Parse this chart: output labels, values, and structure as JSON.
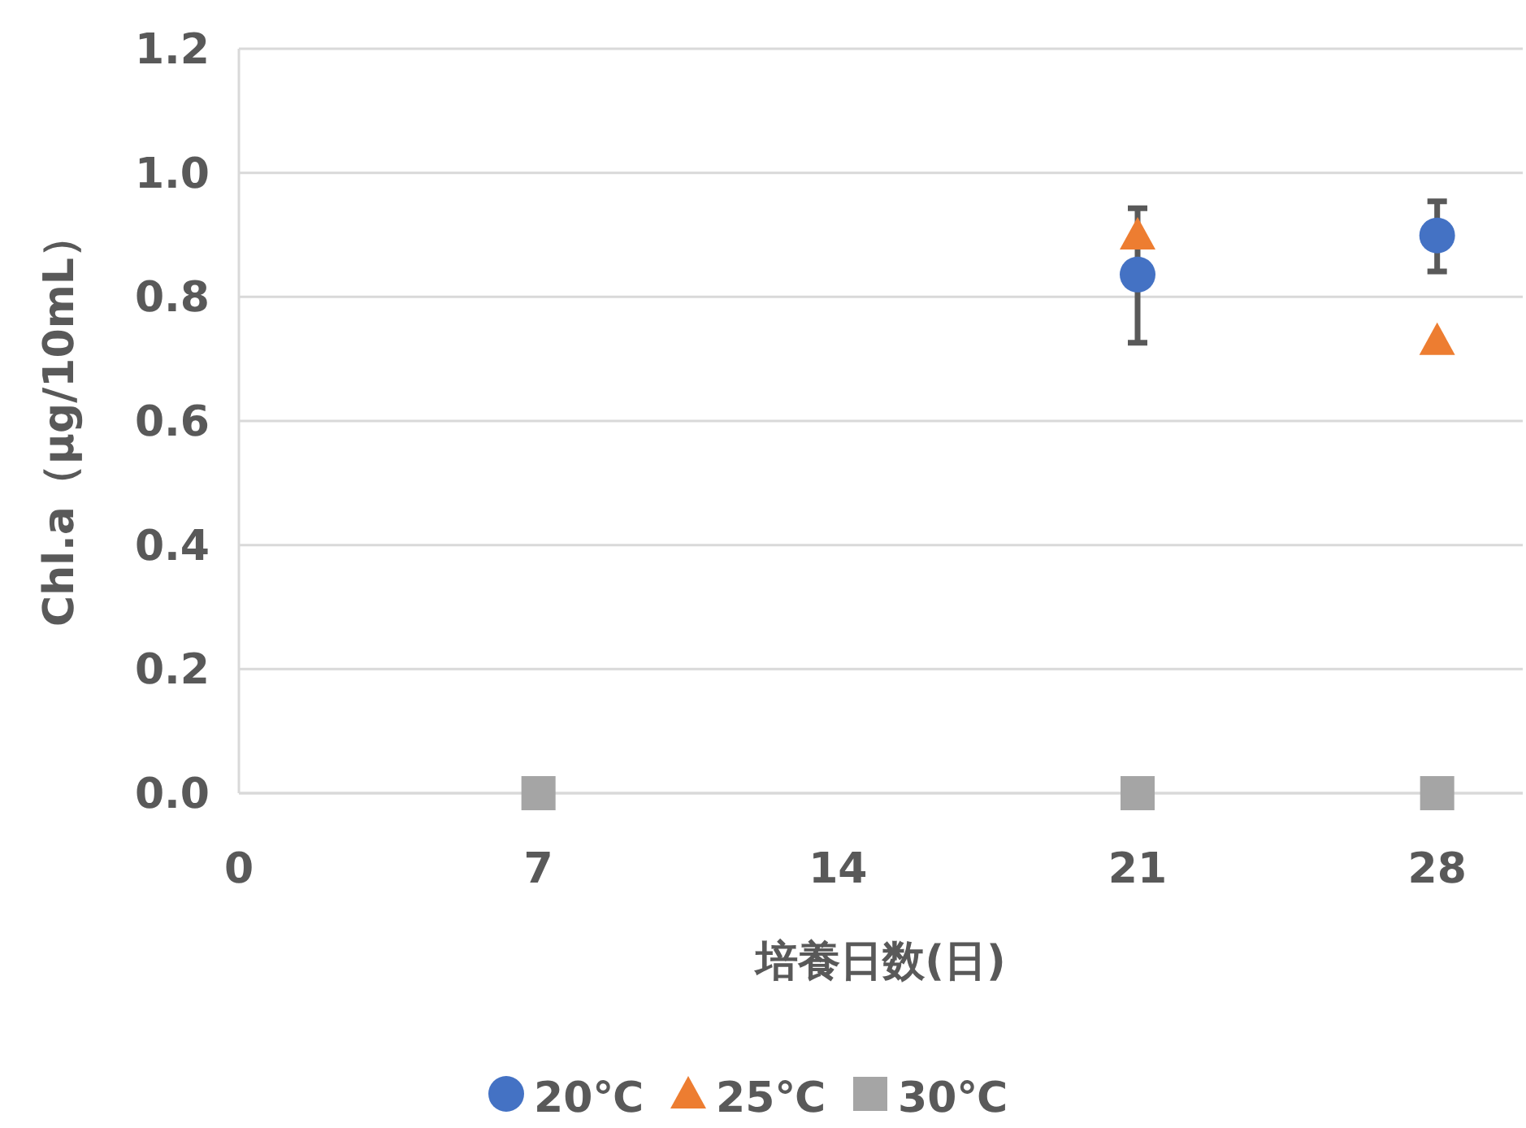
{
  "chart_data": {
    "type": "scatter",
    "xlabel": "培養日数(日)",
    "ylabel": "Chl.a（μg/10mL）",
    "xlim": [
      0,
      30
    ],
    "xticks": [
      0,
      7,
      14,
      21,
      28
    ],
    "ylim": [
      0,
      1.2
    ],
    "yticks": [
      {
        "value": 0,
        "label": "0.0"
      },
      {
        "value": 0.2,
        "label": "0.2"
      },
      {
        "value": 0.4,
        "label": "0.4"
      },
      {
        "value": 0.6,
        "label": "0.6"
      },
      {
        "value": 0.8,
        "label": "0.8"
      },
      {
        "value": 1.0,
        "label": "1.0"
      },
      {
        "value": 1.2,
        "label": "1.2"
      }
    ],
    "grid": "y",
    "legend": "bottom",
    "series": [
      {
        "name": "20℃",
        "color": "#4472c4",
        "marker": "circle",
        "x": [
          21,
          28
        ],
        "values": [
          0.836,
          0.899
        ],
        "errors": [
          [
            0.726,
            0.943
          ],
          [
            0.841,
            0.954
          ]
        ]
      },
      {
        "name": "25℃",
        "color": "#ed7d31",
        "marker": "triangle",
        "x": [
          21,
          28
        ],
        "values": [
          0.9,
          0.73
        ]
      },
      {
        "name": "30℃",
        "color": "#a5a5a5",
        "marker": "square",
        "x": [
          7,
          21,
          28
        ],
        "values": [
          0,
          0,
          0
        ]
      }
    ]
  }
}
